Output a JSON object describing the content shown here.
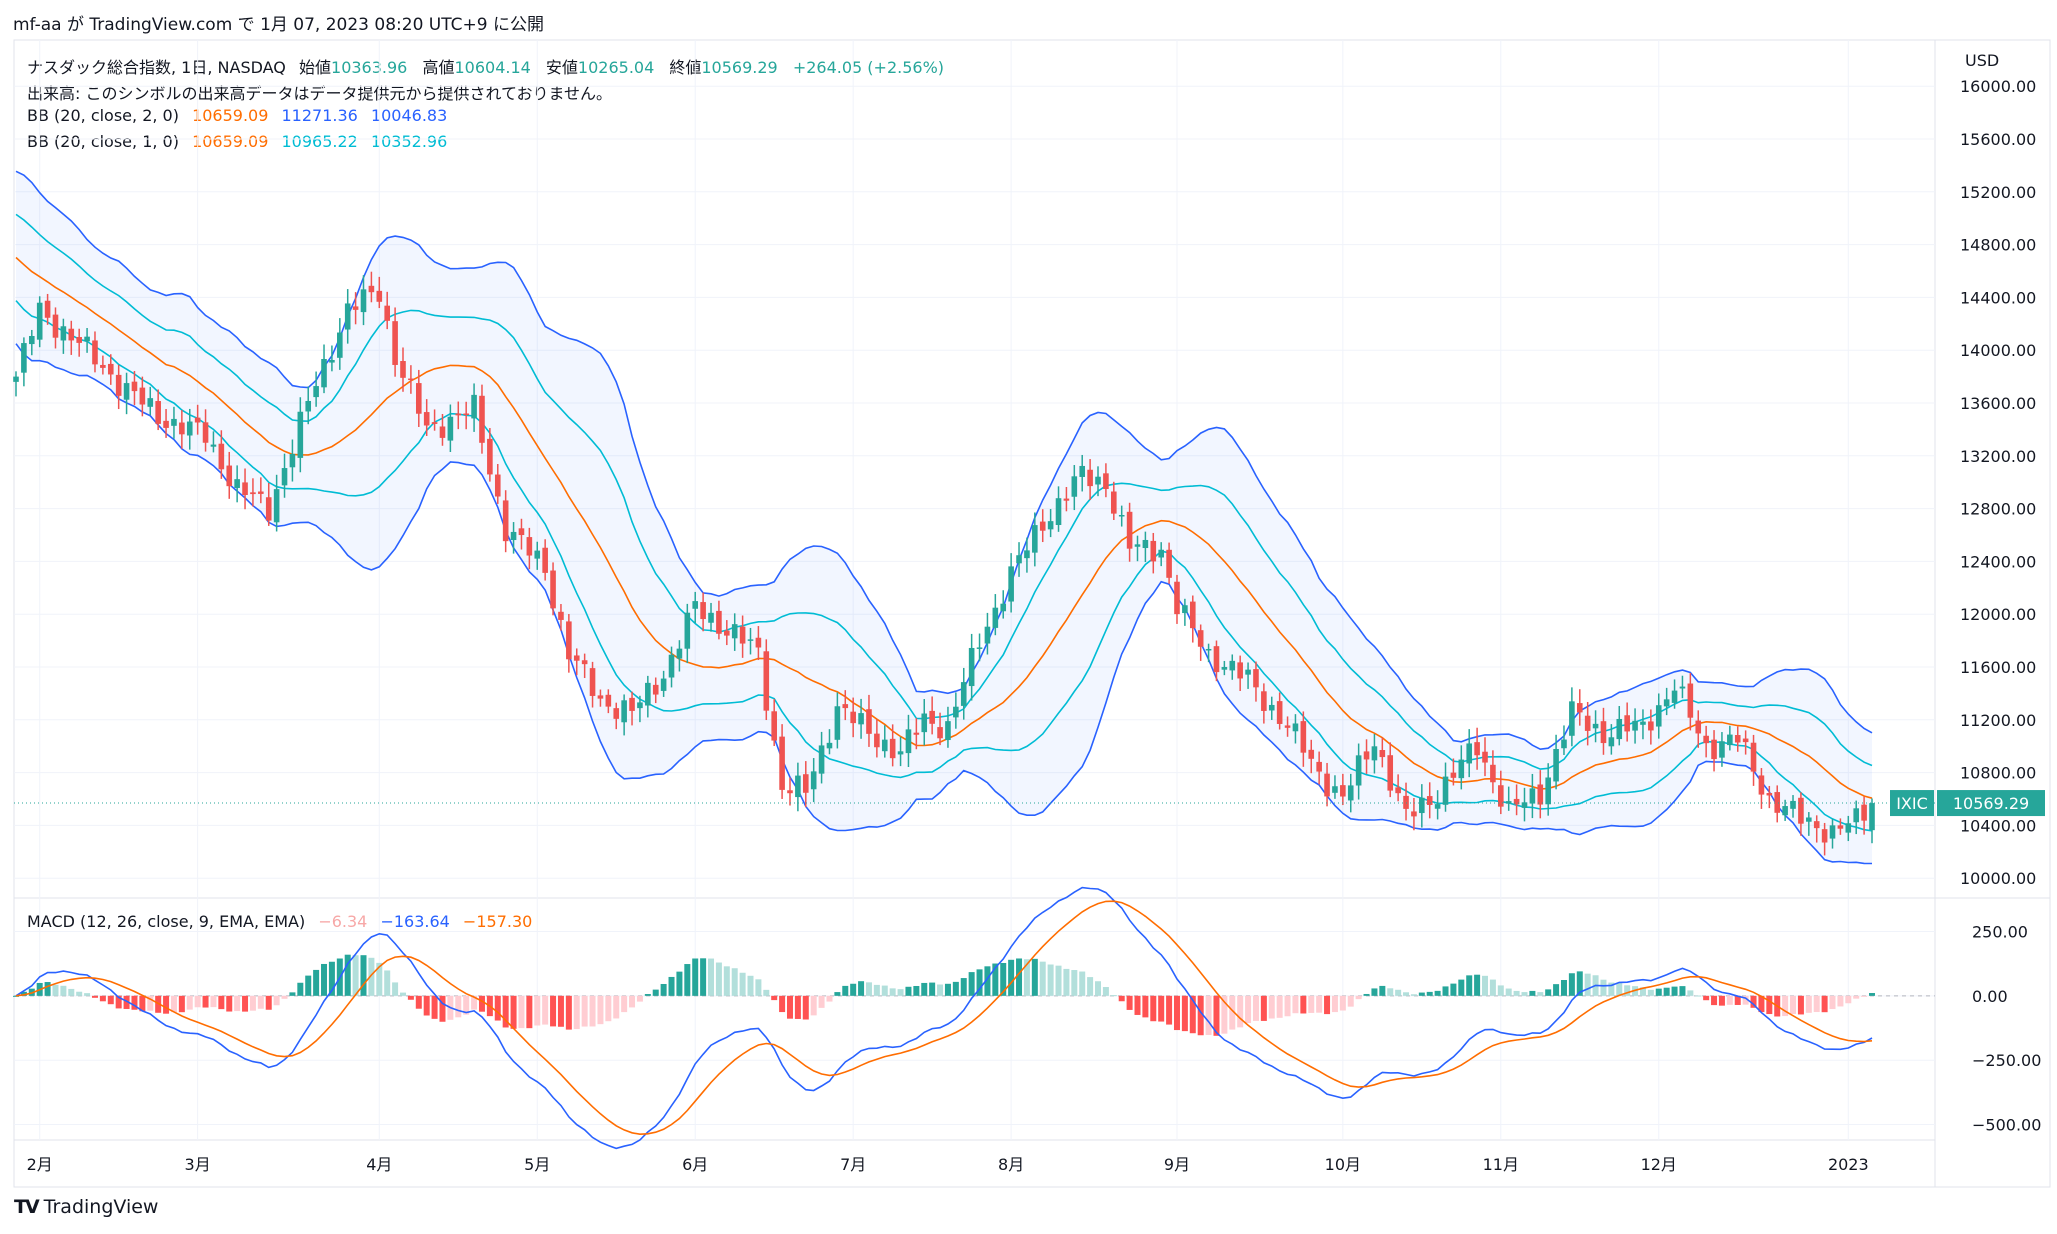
{
  "header": {
    "text": "mf-aa が TradingView.com で 1月 07, 2023 08:20 UTC+9 に公開"
  },
  "legend": {
    "title": "ナスダック総合指数, 1日, NASDAQ",
    "open_label": "始値",
    "open": "10363.96",
    "high_label": "高値",
    "high": "10604.14",
    "low_label": "安値",
    "low": "10265.04",
    "close_label": "終値",
    "close": "10569.29",
    "change": "+264.05 (+2.56%)",
    "volume_note": "出来高: このシンボルの出来高データはデータ提供元から提供されておりません。",
    "bb2_label": "BB (20, close, 2, 0)",
    "bb2_mid": "10659.09",
    "bb2_up": "11271.36",
    "bb2_lo": "10046.83",
    "bb1_label": "BB (20, close, 1, 0)",
    "bb1_mid": "10659.09",
    "bb1_up": "10965.22",
    "bb1_lo": "10352.96",
    "macd_label": "MACD (12, 26, close, 9, EMA, EMA)",
    "macd_hist": "−6.34",
    "macd_line": "−163.64",
    "macd_signal": "−157.30"
  },
  "price_axis": {
    "currency": "USD",
    "symbol": "IXIC",
    "last": "10569.29"
  },
  "footer": {
    "brand": "TradingView",
    "logo": "TV"
  },
  "colors": {
    "up": "#26a69a",
    "down": "#ef5350",
    "bb2": "#2962ff",
    "bb1": "#00bcd4",
    "mid": "#ff6d00",
    "macd": "#2962ff",
    "signal": "#ff6d00"
  },
  "chart_data": {
    "type": "candlestick",
    "price_ticks": [
      10000,
      10400,
      10800,
      11200,
      11600,
      12000,
      12400,
      12800,
      13200,
      13600,
      14000,
      14400,
      14800,
      15200,
      15600,
      16000
    ],
    "price_ylim": [
      9850,
      16350
    ],
    "macd_ticks": [
      -500,
      -250,
      0,
      250
    ],
    "macd_ylim": [
      -560,
      380
    ],
    "x_labels": [
      "2月",
      "3月",
      "4月",
      "5月",
      "6月",
      "7月",
      "8月",
      "9月",
      "10月",
      "11月",
      "12月",
      "2023"
    ],
    "x_label_index": [
      3,
      23,
      46,
      66,
      86,
      106,
      126,
      147,
      168,
      188,
      208,
      232
    ],
    "n_bars": 236,
    "close_anchors": [
      [
        0,
        13800
      ],
      [
        3,
        14300
      ],
      [
        8,
        14050
      ],
      [
        14,
        13700
      ],
      [
        18,
        13500
      ],
      [
        24,
        13350
      ],
      [
        28,
        12950
      ],
      [
        32,
        12800
      ],
      [
        38,
        13750
      ],
      [
        42,
        14300
      ],
      [
        46,
        14450
      ],
      [
        48,
        13950
      ],
      [
        52,
        13400
      ],
      [
        58,
        13550
      ],
      [
        62,
        12650
      ],
      [
        67,
        12350
      ],
      [
        70,
        11700
      ],
      [
        74,
        11350
      ],
      [
        78,
        11250
      ],
      [
        82,
        11550
      ],
      [
        86,
        12050
      ],
      [
        91,
        11850
      ],
      [
        94,
        11700
      ],
      [
        97,
        10700
      ],
      [
        100,
        10650
      ],
      [
        104,
        11300
      ],
      [
        108,
        11100
      ],
      [
        112,
        10950
      ],
      [
        115,
        11200
      ],
      [
        118,
        11150
      ],
      [
        122,
        11800
      ],
      [
        126,
        12300
      ],
      [
        130,
        12700
      ],
      [
        135,
        13050
      ],
      [
        138,
        13000
      ],
      [
        141,
        12500
      ],
      [
        145,
        12500
      ],
      [
        147,
        12050
      ],
      [
        151,
        11700
      ],
      [
        156,
        11500
      ],
      [
        161,
        11150
      ],
      [
        165,
        10800
      ],
      [
        168,
        10600
      ],
      [
        172,
        11050
      ],
      [
        176,
        10450
      ],
      [
        180,
        10650
      ],
      [
        185,
        11000
      ],
      [
        189,
        10500
      ],
      [
        193,
        10650
      ],
      [
        197,
        11250
      ],
      [
        201,
        11100
      ],
      [
        206,
        11150
      ],
      [
        210,
        11450
      ],
      [
        214,
        11000
      ],
      [
        218,
        11050
      ],
      [
        222,
        10600
      ],
      [
        226,
        10450
      ],
      [
        230,
        10350
      ],
      [
        233,
        10430
      ],
      [
        235,
        10569
      ]
    ]
  }
}
